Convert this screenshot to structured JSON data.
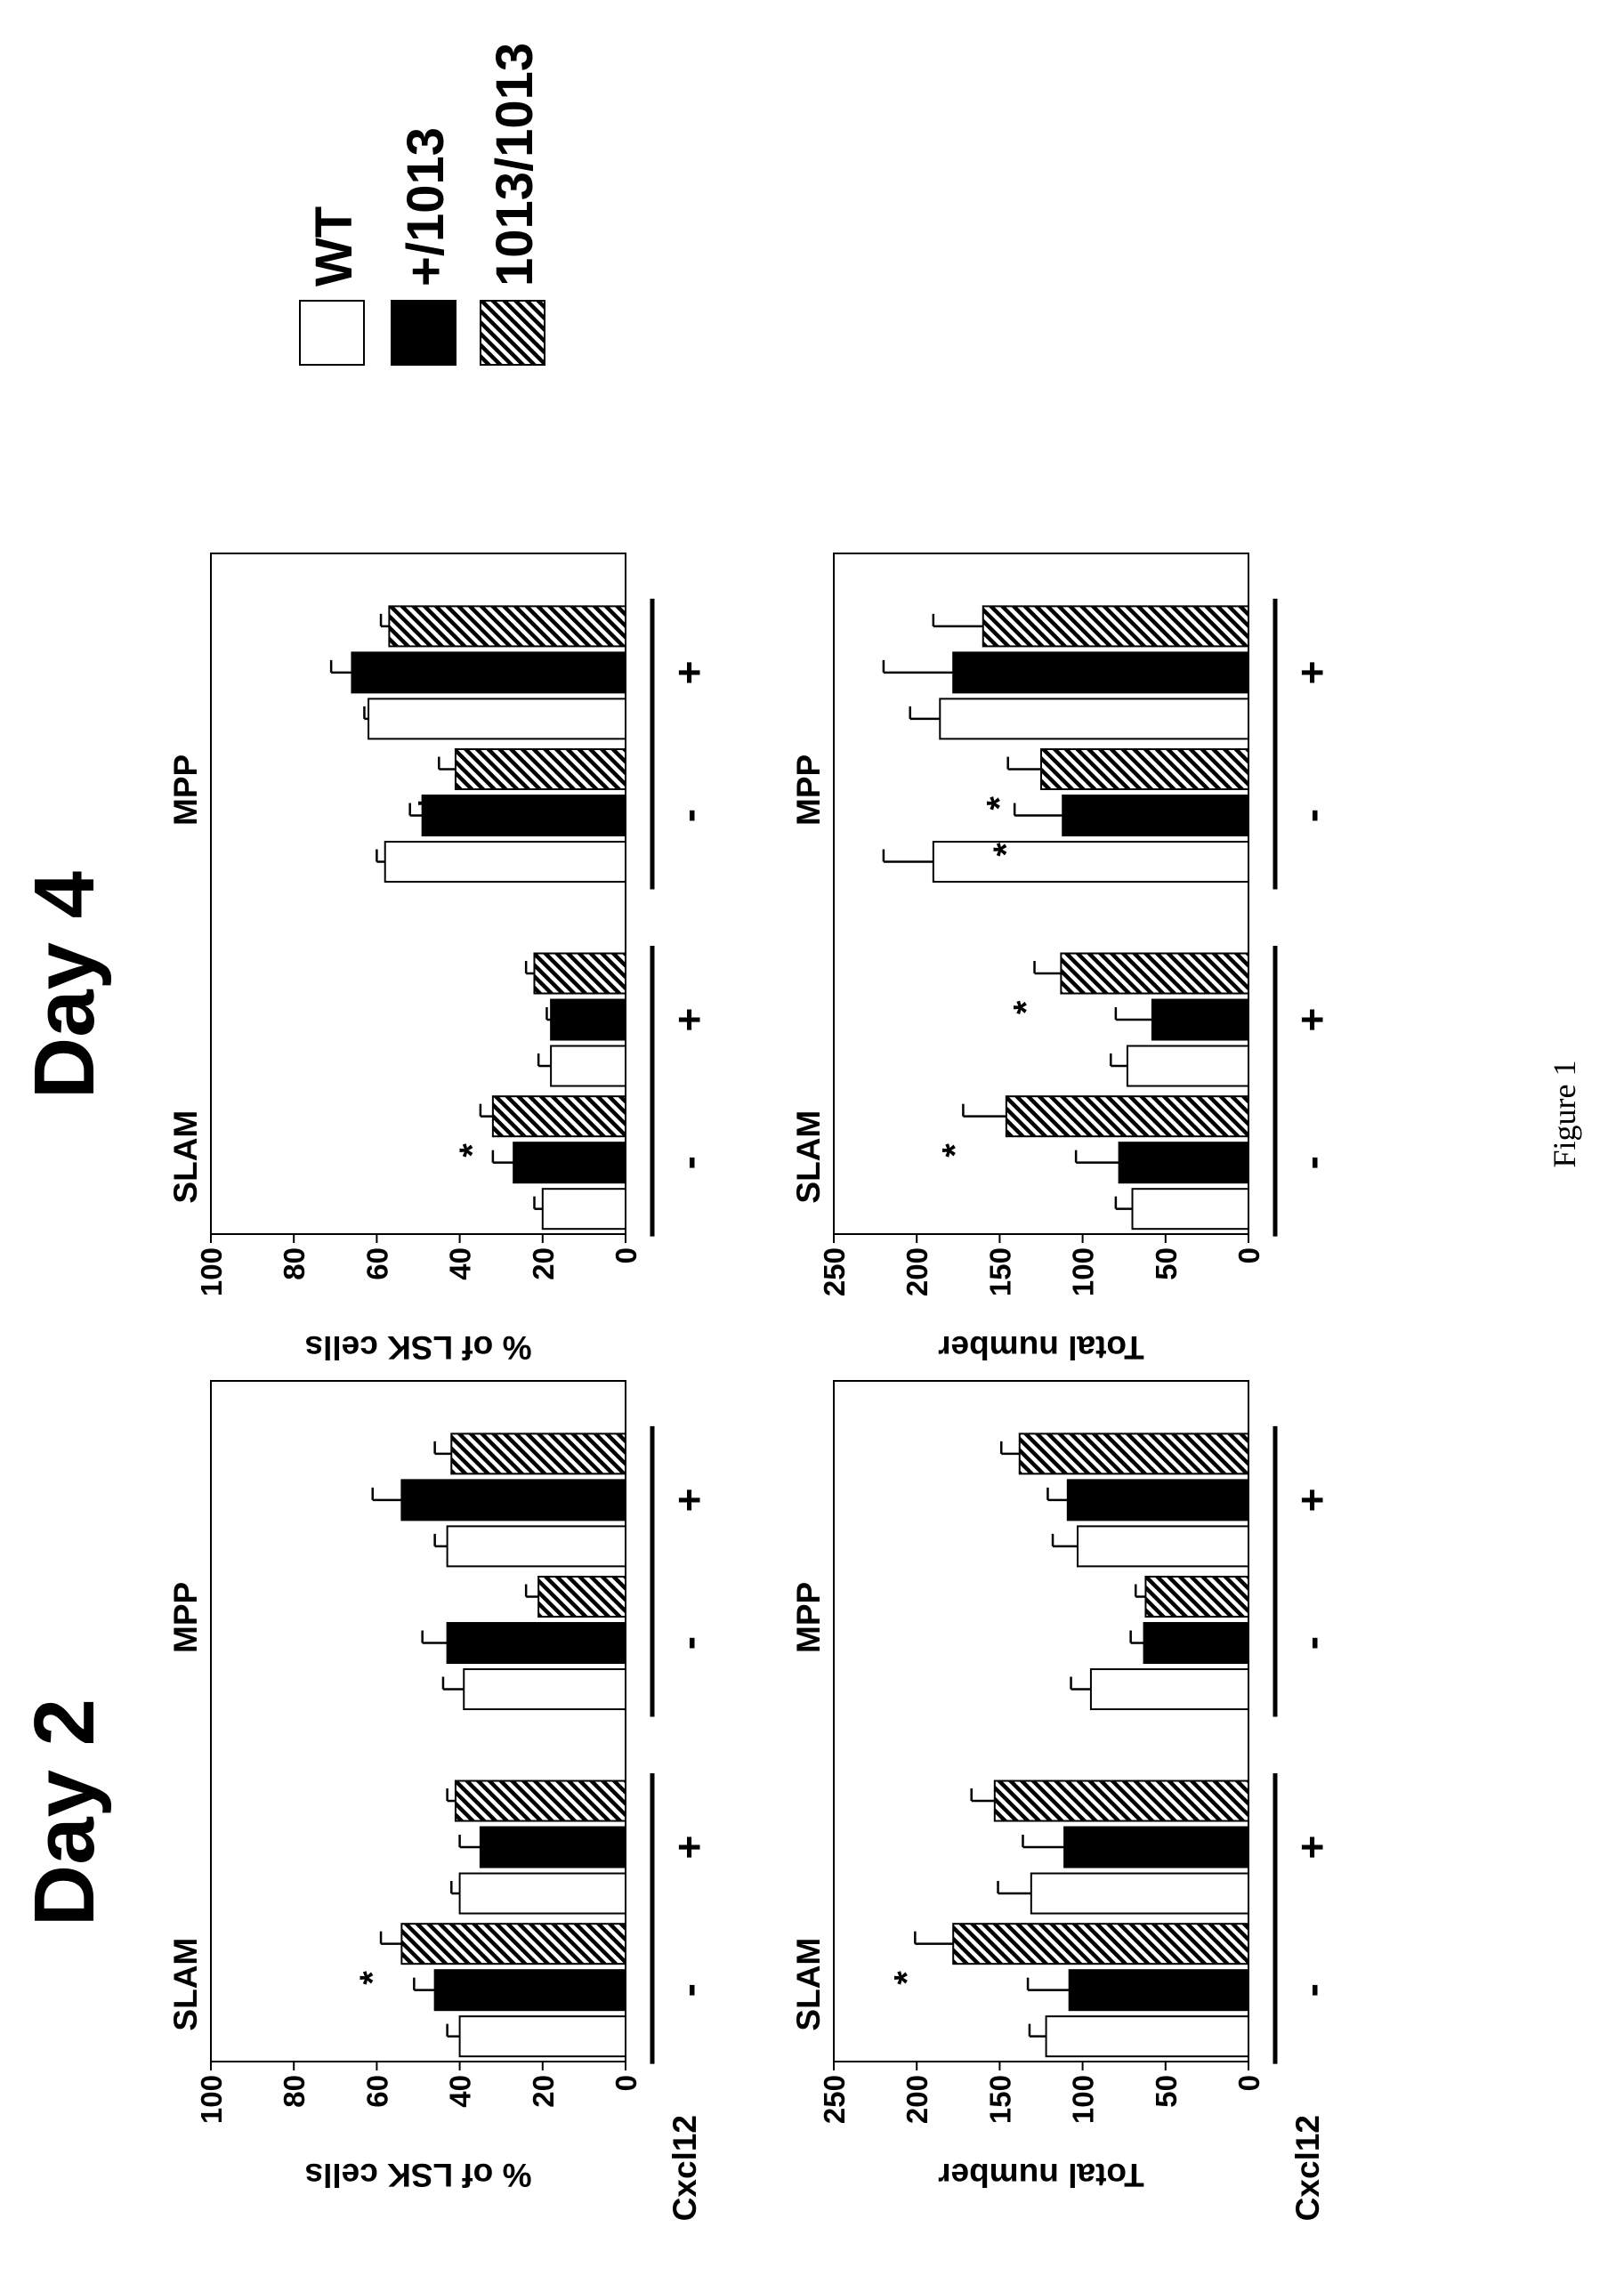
{
  "figure_caption": "Figure 1",
  "day_titles": [
    "Day 2",
    "Day 4"
  ],
  "legend": {
    "entries": [
      {
        "label": "WT",
        "pattern": "open"
      },
      {
        "label": "+/1013",
        "pattern": "solid"
      },
      {
        "label": "1013/1013",
        "pattern": "hatch"
      }
    ]
  },
  "group_labels": [
    "SLAM",
    "MPP"
  ],
  "cxcl12_label": "Cxcl12",
  "cxcl12_states": [
    "-",
    "+",
    "-",
    "+"
  ],
  "chart_data": [
    {
      "type": "bar",
      "id": "day2-percent",
      "panel_title": "Day 2",
      "ylabel": "% of LSK cells",
      "ylim": [
        0,
        100
      ],
      "yticks": [
        0,
        20,
        40,
        60,
        80,
        100
      ],
      "categories": [
        "SLAM -",
        "SLAM +",
        "MPP -",
        "MPP +"
      ],
      "series": [
        {
          "name": "WT",
          "values": [
            40,
            40,
            39,
            43
          ],
          "errors": [
            3,
            2,
            5,
            3
          ]
        },
        {
          "name": "+/1013",
          "values": [
            46,
            35,
            43,
            54
          ],
          "errors": [
            5,
            5,
            6,
            7
          ]
        },
        {
          "name": "1013/1013",
          "values": [
            54,
            41,
            21,
            42
          ],
          "errors": [
            5,
            2,
            3,
            4
          ]
        }
      ],
      "significance": [
        {
          "category": 0,
          "series": 2,
          "mark": "*"
        },
        {
          "category": 2,
          "series": 2,
          "mark": "*"
        }
      ]
    },
    {
      "type": "bar",
      "id": "day2-total",
      "panel_title": "Day 2",
      "ylabel": "Total number",
      "ylim": [
        0,
        250
      ],
      "yticks": [
        0,
        50,
        100,
        150,
        200,
        250
      ],
      "categories": [
        "SLAM -",
        "SLAM +",
        "MPP -",
        "MPP +"
      ],
      "series": [
        {
          "name": "WT",
          "values": [
            122,
            131,
            95,
            103
          ],
          "errors": [
            10,
            20,
            12,
            15
          ]
        },
        {
          "name": "+/1013",
          "values": [
            108,
            111,
            63,
            109
          ],
          "errors": [
            25,
            25,
            8,
            12
          ]
        },
        {
          "name": "1013/1013",
          "values": [
            178,
            153,
            62,
            138
          ],
          "errors": [
            23,
            14,
            6,
            11
          ]
        }
      ],
      "significance": [
        {
          "category": 0,
          "series": 2,
          "mark": "*"
        }
      ]
    },
    {
      "type": "bar",
      "id": "day4-percent",
      "panel_title": "Day 4",
      "ylabel": "% of LSK cells",
      "ylim": [
        0,
        100
      ],
      "yticks": [
        0,
        20,
        40,
        60,
        80,
        100
      ],
      "categories": [
        "SLAM -",
        "SLAM +",
        "MPP -",
        "MPP +"
      ],
      "series": [
        {
          "name": "WT",
          "values": [
            20,
            18,
            58,
            62
          ],
          "errors": [
            2,
            3,
            2,
            1
          ]
        },
        {
          "name": "+/1013",
          "values": [
            27,
            18,
            49,
            66
          ],
          "errors": [
            5,
            1,
            3,
            5
          ]
        },
        {
          "name": "1013/1013",
          "values": [
            32,
            22,
            41,
            57
          ],
          "errors": [
            3,
            2,
            4,
            2
          ]
        }
      ],
      "significance": [
        {
          "category": 0,
          "series": 2,
          "mark": "*"
        },
        {
          "category": 2,
          "series": 2,
          "mark": "*"
        }
      ]
    },
    {
      "type": "bar",
      "id": "day4-total",
      "panel_title": "Day 4",
      "ylabel": "Total number",
      "ylim": [
        0,
        250
      ],
      "yticks": [
        0,
        50,
        100,
        150,
        200,
        250
      ],
      "categories": [
        "SLAM -",
        "SLAM +",
        "MPP -",
        "MPP +"
      ],
      "series": [
        {
          "name": "WT",
          "values": [
            70,
            73,
            190,
            186
          ],
          "errors": [
            10,
            10,
            30,
            18
          ]
        },
        {
          "name": "+/1013",
          "values": [
            78,
            58,
            112,
            178
          ],
          "errors": [
            26,
            22,
            29,
            42
          ]
        },
        {
          "name": "1013/1013",
          "values": [
            146,
            113,
            125,
            160
          ],
          "errors": [
            26,
            16,
            20,
            30
          ]
        }
      ],
      "significance": [
        {
          "category": 0,
          "series": 2,
          "mark": "*"
        },
        {
          "category": 1,
          "series": 2,
          "mark": "*"
        },
        {
          "category": 2,
          "series": 1,
          "mark": "*"
        },
        {
          "category": 2,
          "series": 2,
          "mark": "*"
        }
      ]
    }
  ]
}
